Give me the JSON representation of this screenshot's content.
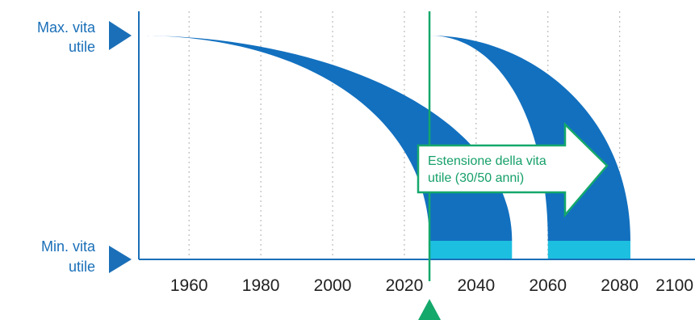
{
  "chart_data": {
    "type": "area",
    "title": "",
    "xlabel": "",
    "ylabel": "",
    "x_ticks": [
      1960,
      1980,
      2000,
      2020,
      2040,
      2060,
      2080,
      2100
    ],
    "xlim": [
      1946,
      2101
    ],
    "grid": "vertical-dotted",
    "y_labels": {
      "max": "Max. vita utile",
      "min": "Min. vita utile"
    },
    "current_year": 2027,
    "bands": [
      {
        "start_year": 1946,
        "max_end_year": 2050,
        "min_end_year": 2027
      },
      {
        "start_year": 2027,
        "max_end_year": 2083,
        "min_end_year": 2060
      }
    ],
    "annotation": {
      "text_line1": "Estensione della vita",
      "text_line2": "utile (30/50 anni)"
    },
    "colors": {
      "band": "#1270bf",
      "floor": "#1dbfe0",
      "axis": "#1a6fb8",
      "marker": "#14a86b",
      "grid": "#bbbbbb",
      "label_text": "#1a6fb8"
    }
  }
}
